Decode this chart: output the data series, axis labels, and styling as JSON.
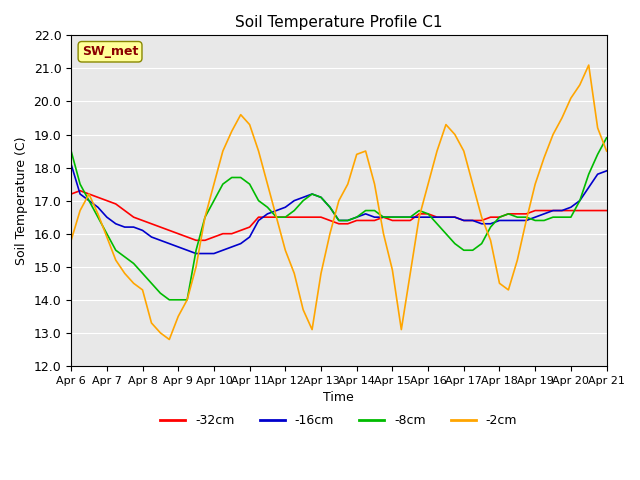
{
  "title": "Soil Temperature Profile C1",
  "xlabel": "Time",
  "ylabel": "Soil Temperature (C)",
  "ylim": [
    12.0,
    22.0
  ],
  "yticks": [
    12.0,
    13.0,
    14.0,
    15.0,
    16.0,
    17.0,
    18.0,
    19.0,
    20.0,
    21.0,
    22.0
  ],
  "xtick_labels": [
    "Apr 6",
    "Apr 7",
    "Apr 8",
    "Apr 9",
    "Apr 10",
    "Apr 11",
    "Apr 12",
    "Apr 13",
    "Apr 14",
    "Apr 15",
    "Apr 16",
    "Apr 17",
    "Apr 18",
    "Apr 19",
    "Apr 20",
    "Apr 21"
  ],
  "annotation_text": "SW_met",
  "annotation_color": "#8B0000",
  "annotation_bg": "#FFFF99",
  "bg_color": "#E8E8E8",
  "series": {
    "-32cm": {
      "color": "#FF0000",
      "values": [
        17.2,
        17.3,
        17.2,
        17.1,
        17.0,
        16.9,
        16.7,
        16.5,
        16.4,
        16.3,
        16.2,
        16.1,
        16.0,
        15.9,
        15.8,
        15.8,
        15.9,
        16.0,
        16.0,
        16.1,
        16.2,
        16.5,
        16.5,
        16.5,
        16.5,
        16.5,
        16.5,
        16.5,
        16.5,
        16.4,
        16.3,
        16.3,
        16.4,
        16.4,
        16.4,
        16.5,
        16.4,
        16.4,
        16.4,
        16.6,
        16.6,
        16.5,
        16.5,
        16.5,
        16.4,
        16.4,
        16.4,
        16.5,
        16.5,
        16.6,
        16.6,
        16.6,
        16.7,
        16.7,
        16.7,
        16.7,
        16.7,
        16.7,
        16.7,
        16.7,
        16.7
      ]
    },
    "-16cm": {
      "color": "#0000CC",
      "values": [
        18.1,
        17.2,
        17.0,
        16.8,
        16.5,
        16.3,
        16.2,
        16.2,
        16.1,
        15.9,
        15.8,
        15.7,
        15.6,
        15.5,
        15.4,
        15.4,
        15.4,
        15.5,
        15.6,
        15.7,
        15.9,
        16.4,
        16.6,
        16.7,
        16.8,
        17.0,
        17.1,
        17.2,
        17.1,
        16.8,
        16.4,
        16.4,
        16.5,
        16.6,
        16.5,
        16.5,
        16.5,
        16.5,
        16.5,
        16.5,
        16.5,
        16.5,
        16.5,
        16.5,
        16.4,
        16.4,
        16.3,
        16.3,
        16.4,
        16.4,
        16.4,
        16.4,
        16.5,
        16.6,
        16.7,
        16.7,
        16.8,
        17.0,
        17.4,
        17.8,
        17.9
      ]
    },
    "-8cm": {
      "color": "#00BB00",
      "values": [
        18.5,
        17.5,
        17.0,
        16.5,
        16.0,
        15.5,
        15.3,
        15.1,
        14.8,
        14.5,
        14.2,
        14.0,
        14.0,
        14.0,
        15.5,
        16.5,
        17.0,
        17.5,
        17.7,
        17.7,
        17.5,
        17.0,
        16.8,
        16.5,
        16.5,
        16.7,
        17.0,
        17.2,
        17.1,
        16.8,
        16.4,
        16.4,
        16.5,
        16.7,
        16.7,
        16.5,
        16.5,
        16.5,
        16.5,
        16.7,
        16.6,
        16.3,
        16.0,
        15.7,
        15.5,
        15.5,
        15.7,
        16.2,
        16.5,
        16.6,
        16.5,
        16.5,
        16.4,
        16.4,
        16.5,
        16.5,
        16.5,
        17.0,
        17.8,
        18.4,
        18.9
      ]
    },
    "-2cm": {
      "color": "#FFA500",
      "values": [
        15.8,
        16.7,
        17.2,
        16.6,
        15.9,
        15.2,
        14.8,
        14.5,
        14.3,
        13.3,
        13.0,
        12.8,
        13.5,
        14.0,
        15.0,
        16.5,
        17.5,
        18.5,
        19.1,
        19.6,
        19.3,
        18.5,
        17.5,
        16.5,
        15.5,
        14.8,
        13.7,
        13.1,
        14.8,
        16.0,
        17.0,
        17.5,
        18.4,
        18.5,
        17.5,
        16.0,
        14.9,
        13.1,
        14.8,
        16.5,
        17.5,
        18.5,
        19.3,
        19.0,
        18.5,
        17.5,
        16.5,
        15.8,
        14.5,
        14.3,
        15.2,
        16.4,
        17.5,
        18.3,
        19.0,
        19.5,
        20.1,
        20.5,
        21.1,
        19.2,
        18.5
      ]
    }
  }
}
